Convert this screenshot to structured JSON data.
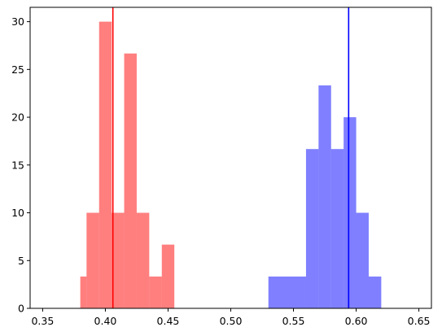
{
  "chart_data": {
    "type": "histogram",
    "xlim": [
      0.34,
      0.66
    ],
    "ylim": [
      0,
      31.5
    ],
    "xticks": [
      0.35,
      0.4,
      0.45,
      0.5,
      0.55,
      0.6,
      0.65
    ],
    "xtick_labels": [
      "0.35",
      "0.40",
      "0.45",
      "0.50",
      "0.55",
      "0.60",
      "0.65"
    ],
    "yticks": [
      0,
      5,
      10,
      15,
      20,
      25,
      30
    ],
    "ytick_labels": [
      "0",
      "5",
      "10",
      "15",
      "20",
      "25",
      "30"
    ],
    "grid": false,
    "series": [
      {
        "color": "#ff0000",
        "alpha": 0.5,
        "bins": [
          {
            "x0": 0.38,
            "x1": 0.385,
            "y": 3.33
          },
          {
            "x0": 0.385,
            "x1": 0.395,
            "y": 10.0
          },
          {
            "x0": 0.395,
            "x1": 0.405,
            "y": 30.0
          },
          {
            "x0": 0.405,
            "x1": 0.415,
            "y": 10.0
          },
          {
            "x0": 0.415,
            "x1": 0.425,
            "y": 26.67
          },
          {
            "x0": 0.425,
            "x1": 0.435,
            "y": 10.0
          },
          {
            "x0": 0.435,
            "x1": 0.445,
            "y": 3.33
          },
          {
            "x0": 0.445,
            "x1": 0.455,
            "y": 6.67
          }
        ],
        "vline": 0.406
      },
      {
        "color": "#0000ff",
        "alpha": 0.5,
        "bins": [
          {
            "x0": 0.53,
            "x1": 0.56,
            "y": 3.33
          },
          {
            "x0": 0.56,
            "x1": 0.57,
            "y": 16.67
          },
          {
            "x0": 0.57,
            "x1": 0.58,
            "y": 23.33
          },
          {
            "x0": 0.58,
            "x1": 0.59,
            "y": 16.67
          },
          {
            "x0": 0.59,
            "x1": 0.6,
            "y": 20.0
          },
          {
            "x0": 0.6,
            "x1": 0.61,
            "y": 10.0
          },
          {
            "x0": 0.61,
            "x1": 0.62,
            "y": 3.33
          }
        ],
        "vline": 0.594
      }
    ]
  }
}
